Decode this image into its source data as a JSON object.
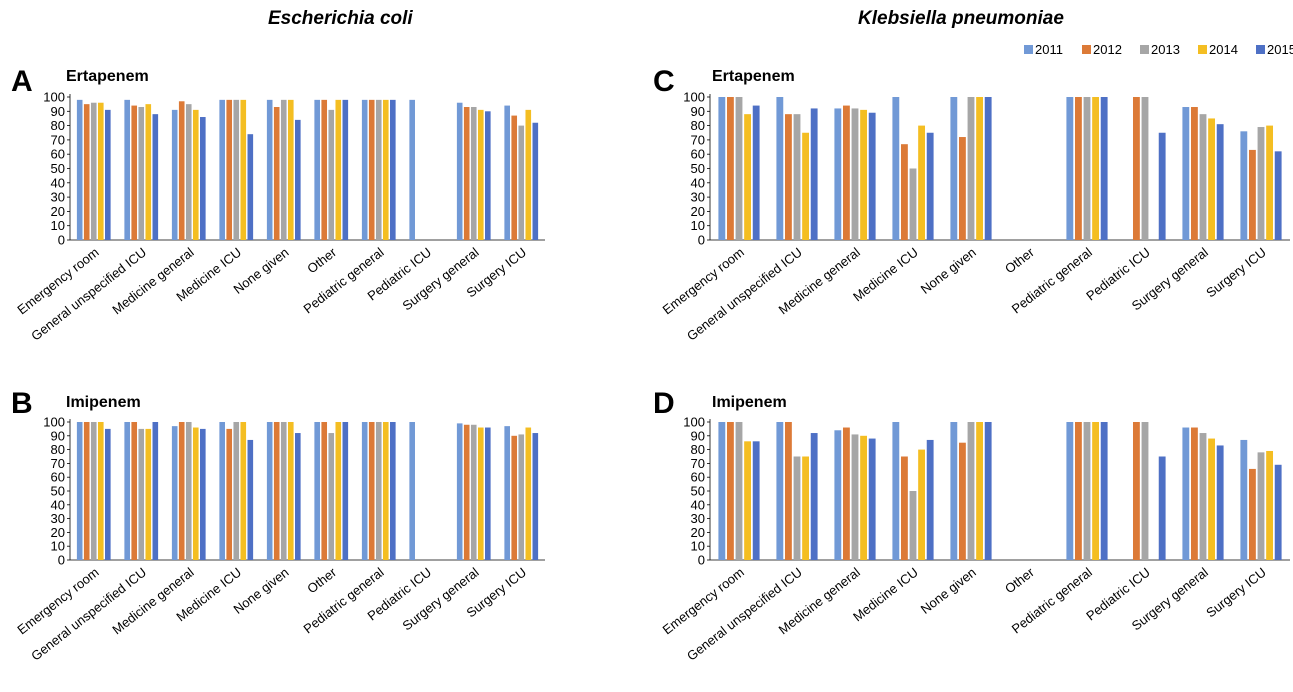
{
  "headers": {
    "left": "Escherichia coli",
    "right": "Klebsiella pneumoniae"
  },
  "legend": {
    "series": [
      "2011",
      "2012",
      "2013",
      "2014",
      "2015"
    ],
    "colors": [
      "#7199d6",
      "#dc7a37",
      "#a6a6a6",
      "#f4be22",
      "#4e70c5"
    ]
  },
  "chart_data": [
    {
      "type": "bar",
      "panel": "A",
      "title": "Ertapenem",
      "ylim": [
        0,
        100
      ],
      "yticks": [
        0,
        10,
        20,
        30,
        40,
        50,
        60,
        70,
        80,
        90,
        100
      ],
      "categories": [
        "Emergency room",
        "General unspecified ICU",
        "Medicine general",
        "Medicine ICU",
        "None given",
        "Other",
        "Pediatric general",
        "Pediatric ICU",
        "Surgery general",
        "Surgery ICU"
      ],
      "series": [
        {
          "name": "2011",
          "values": [
            98,
            98,
            91,
            98,
            98,
            98,
            98,
            98,
            96,
            94
          ]
        },
        {
          "name": "2012",
          "values": [
            95,
            94,
            97,
            98,
            93,
            98,
            98,
            null,
            93,
            87
          ]
        },
        {
          "name": "2013",
          "values": [
            96,
            93,
            95,
            98,
            98,
            91,
            98,
            null,
            93,
            80
          ]
        },
        {
          "name": "2014",
          "values": [
            96,
            95,
            91,
            98,
            98,
            98,
            98,
            null,
            91,
            91
          ]
        },
        {
          "name": "2015",
          "values": [
            91,
            88,
            86,
            74,
            84,
            98,
            98,
            null,
            90,
            82
          ]
        }
      ]
    },
    {
      "type": "bar",
      "panel": "B",
      "title": "Imipenem",
      "ylim": [
        0,
        100
      ],
      "yticks": [
        0,
        10,
        20,
        30,
        40,
        50,
        60,
        70,
        80,
        90,
        100
      ],
      "categories": [
        "Emergency room",
        "General unspecified ICU",
        "Medicine general",
        "Medicine ICU",
        "None given",
        "Other",
        "Pediatric general",
        "Pediatric ICU",
        "Surgery general",
        "Surgery ICU"
      ],
      "series": [
        {
          "name": "2011",
          "values": [
            100,
            100,
            97,
            100,
            100,
            100,
            100,
            100,
            99,
            97
          ]
        },
        {
          "name": "2012",
          "values": [
            100,
            100,
            100,
            95,
            100,
            100,
            100,
            null,
            98,
            90
          ]
        },
        {
          "name": "2013",
          "values": [
            100,
            95,
            100,
            100,
            100,
            92,
            100,
            null,
            98,
            91
          ]
        },
        {
          "name": "2014",
          "values": [
            100,
            95,
            96,
            100,
            100,
            100,
            100,
            null,
            96,
            96
          ]
        },
        {
          "name": "2015",
          "values": [
            95,
            100,
            95,
            87,
            92,
            100,
            100,
            null,
            96,
            92
          ]
        }
      ]
    },
    {
      "type": "bar",
      "panel": "C",
      "title": "Ertapenem",
      "ylim": [
        0,
        100
      ],
      "yticks": [
        0,
        10,
        20,
        30,
        40,
        50,
        60,
        70,
        80,
        90,
        100
      ],
      "categories": [
        "Emergency room",
        "General unspecified ICU",
        "Medicine general",
        "Medicine ICU",
        "None given",
        "Other",
        "Pediatric general",
        "Pediatric ICU",
        "Surgery general",
        "Surgery ICU"
      ],
      "series": [
        {
          "name": "2011",
          "values": [
            100,
            100,
            92,
            100,
            100,
            null,
            100,
            null,
            93,
            76
          ]
        },
        {
          "name": "2012",
          "values": [
            100,
            88,
            94,
            67,
            72,
            null,
            100,
            100,
            93,
            63
          ]
        },
        {
          "name": "2013",
          "values": [
            100,
            88,
            92,
            50,
            100,
            null,
            100,
            100,
            88,
            79
          ]
        },
        {
          "name": "2014",
          "values": [
            88,
            75,
            91,
            80,
            100,
            null,
            100,
            null,
            85,
            80
          ]
        },
        {
          "name": "2015",
          "values": [
            94,
            92,
            89,
            75,
            100,
            null,
            100,
            75,
            81,
            62
          ]
        }
      ]
    },
    {
      "type": "bar",
      "panel": "D",
      "title": "Imipenem",
      "ylim": [
        0,
        100
      ],
      "yticks": [
        0,
        10,
        20,
        30,
        40,
        50,
        60,
        70,
        80,
        90,
        100
      ],
      "categories": [
        "Emergency room",
        "General unspecified ICU",
        "Medicine general",
        "Medicine ICU",
        "None given",
        "Other",
        "Pediatric general",
        "Pediatric ICU",
        "Surgery general",
        "Surgery ICU"
      ],
      "series": [
        {
          "name": "2011",
          "values": [
            100,
            100,
            94,
            100,
            100,
            null,
            100,
            null,
            96,
            87
          ]
        },
        {
          "name": "2012",
          "values": [
            100,
            100,
            96,
            75,
            85,
            null,
            100,
            100,
            96,
            66
          ]
        },
        {
          "name": "2013",
          "values": [
            100,
            75,
            91,
            50,
            100,
            null,
            100,
            100,
            92,
            78
          ]
        },
        {
          "name": "2014",
          "values": [
            86,
            75,
            90,
            80,
            100,
            null,
            100,
            null,
            88,
            79
          ]
        },
        {
          "name": "2015",
          "values": [
            86,
            92,
            88,
            87,
            100,
            null,
            100,
            75,
            83,
            69
          ]
        }
      ]
    }
  ]
}
